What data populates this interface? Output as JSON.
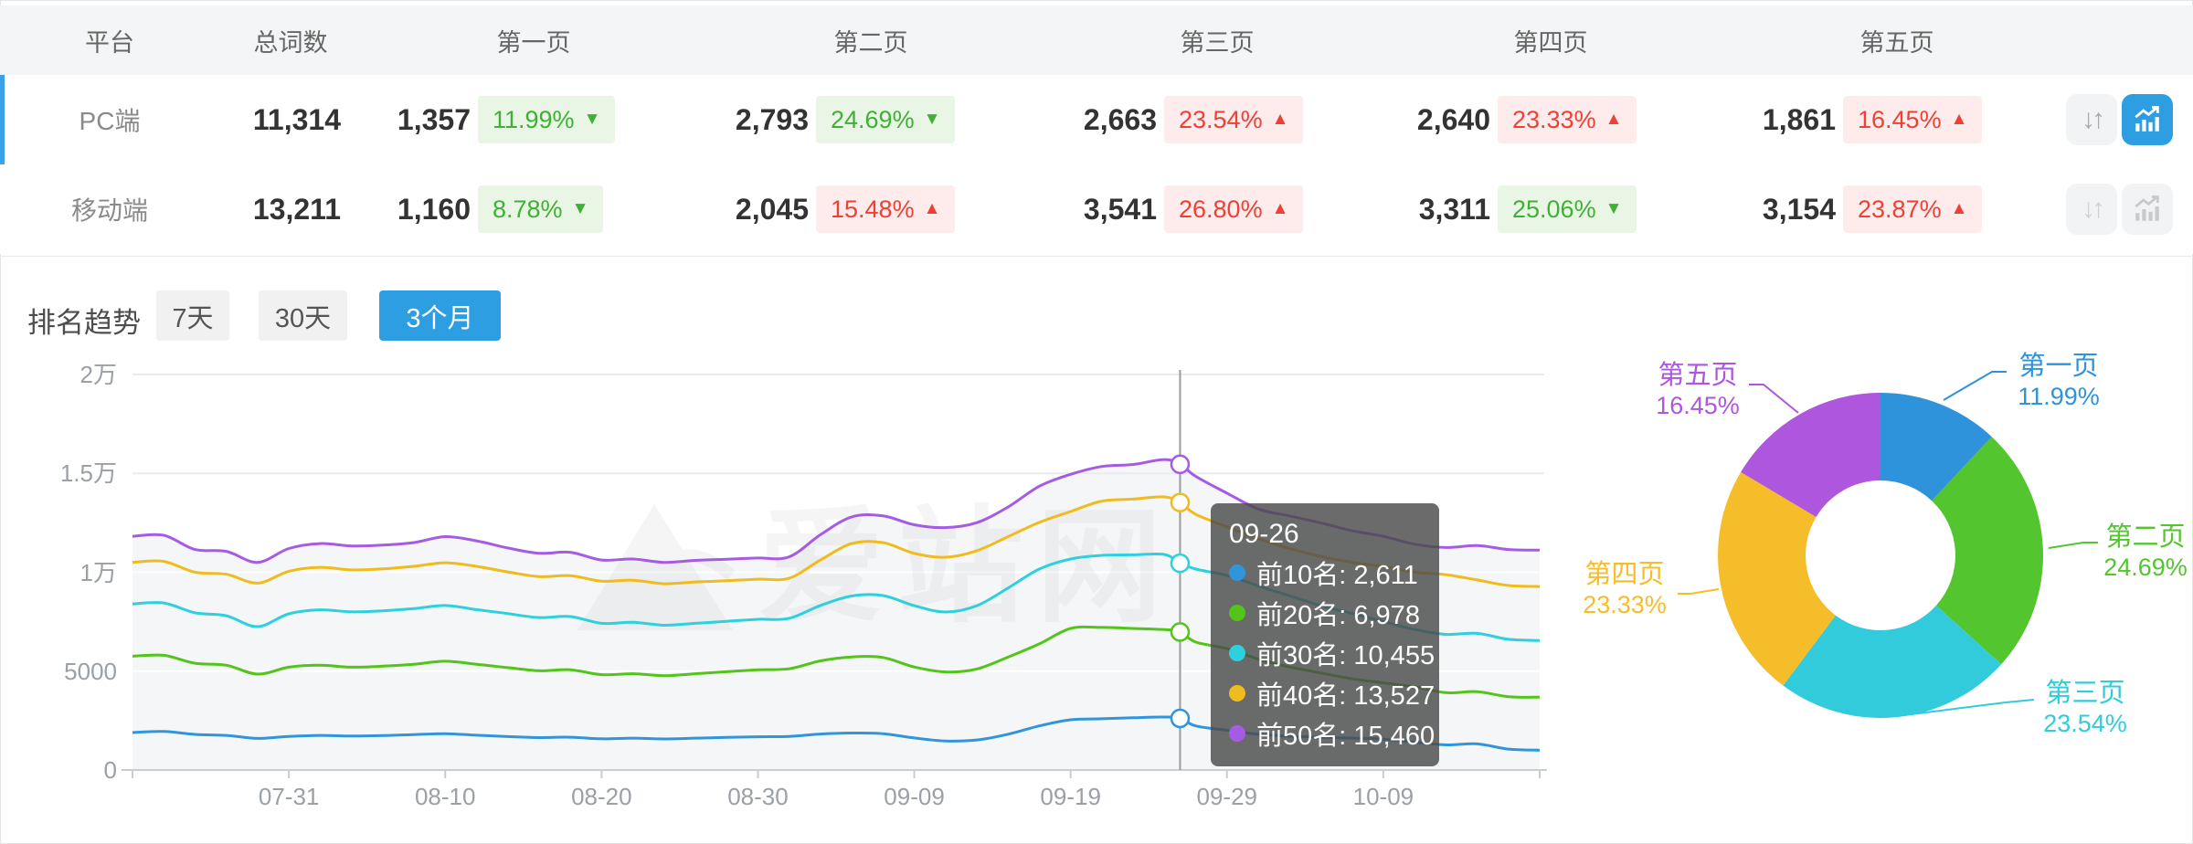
{
  "table": {
    "headers": [
      "平台",
      "总词数",
      "第一页",
      "第二页",
      "第三页",
      "第四页",
      "第五页"
    ],
    "rows": [
      {
        "platform": "PC端",
        "total": "11,314",
        "selected": true,
        "pages": [
          {
            "count": "1,357",
            "pct": "11.99%",
            "dir": "down",
            "tone": "green"
          },
          {
            "count": "2,793",
            "pct": "24.69%",
            "dir": "down",
            "tone": "green"
          },
          {
            "count": "2,663",
            "pct": "23.54%",
            "dir": "up",
            "tone": "red"
          },
          {
            "count": "2,640",
            "pct": "23.33%",
            "dir": "up",
            "tone": "red"
          },
          {
            "count": "1,861",
            "pct": "16.45%",
            "dir": "up",
            "tone": "red"
          }
        ]
      },
      {
        "platform": "移动端",
        "total": "13,211",
        "selected": false,
        "pages": [
          {
            "count": "1,160",
            "pct": "8.78%",
            "dir": "down",
            "tone": "green"
          },
          {
            "count": "2,045",
            "pct": "15.48%",
            "dir": "up",
            "tone": "red"
          },
          {
            "count": "3,541",
            "pct": "26.80%",
            "dir": "up",
            "tone": "red"
          },
          {
            "count": "3,311",
            "pct": "25.06%",
            "dir": "down",
            "tone": "green"
          },
          {
            "count": "3,154",
            "pct": "23.87%",
            "dir": "up",
            "tone": "red"
          }
        ]
      }
    ]
  },
  "trend": {
    "title": "排名趋势",
    "tabs": [
      {
        "label": "7天",
        "active": false
      },
      {
        "label": "30天",
        "active": false
      },
      {
        "label": "3个月",
        "active": true
      }
    ]
  },
  "watermark": "爱站网",
  "colors": {
    "accent_blue": "#2e9ee3",
    "badge_green": "#3eb135",
    "badge_red": "#ee4035"
  },
  "tooltip": {
    "date": "09-26",
    "rows": [
      {
        "label": "前10名",
        "value": "2,611",
        "color": "#3095db"
      },
      {
        "label": "前20名",
        "value": "6,978",
        "color": "#52c41a"
      },
      {
        "label": "前30名",
        "value": "10,455",
        "color": "#2fd0dd"
      },
      {
        "label": "前40名",
        "value": "13,527",
        "color": "#f0bb1d"
      },
      {
        "label": "前50名",
        "value": "15,460",
        "color": "#a55ce4"
      }
    ]
  },
  "chart_data": [
    {
      "type": "line",
      "title": "排名趋势 (3个月)",
      "ylim": [
        0,
        20000
      ],
      "grid": true,
      "hover_date": "09-26",
      "y_ticks": [
        {
          "label": "0",
          "value": 0
        },
        {
          "label": "5000",
          "value": 5000
        },
        {
          "label": "1万",
          "value": 10000
        },
        {
          "label": "1.5万",
          "value": 15000
        },
        {
          "label": "2万",
          "value": 20000
        }
      ],
      "x_ticks": [
        "07-31",
        "08-10",
        "08-20",
        "08-30",
        "09-09",
        "09-19",
        "09-29",
        "10-09"
      ],
      "dates": [
        "07-21",
        "07-23",
        "07-25",
        "07-27",
        "07-29",
        "07-31",
        "08-02",
        "08-04",
        "08-06",
        "08-08",
        "08-10",
        "08-12",
        "08-14",
        "08-16",
        "08-18",
        "08-20",
        "08-22",
        "08-24",
        "08-26",
        "08-28",
        "08-30",
        "09-01",
        "09-03",
        "09-05",
        "09-07",
        "09-09",
        "09-11",
        "09-13",
        "09-15",
        "09-17",
        "09-19",
        "09-21",
        "09-23",
        "09-25",
        "09-26",
        "09-27",
        "09-29",
        "10-01",
        "10-03",
        "10-05",
        "10-07",
        "10-09",
        "10-11",
        "10-13",
        "10-15",
        "10-17",
        "10-19"
      ],
      "series": [
        {
          "name": "前10名",
          "color": "#3095db",
          "values": [
            1900,
            1950,
            1800,
            1750,
            1600,
            1700,
            1750,
            1720,
            1740,
            1790,
            1840,
            1760,
            1690,
            1640,
            1660,
            1580,
            1610,
            1570,
            1610,
            1650,
            1680,
            1700,
            1820,
            1870,
            1840,
            1620,
            1470,
            1520,
            1810,
            2230,
            2540,
            2590,
            2640,
            2680,
            2611,
            2230,
            2010,
            1810,
            1710,
            1660,
            1610,
            1560,
            1410,
            1270,
            1320,
            1060,
            1000
          ]
        },
        {
          "name": "前20名",
          "color": "#52c41a",
          "values": [
            5750,
            5800,
            5400,
            5300,
            4850,
            5200,
            5300,
            5200,
            5250,
            5350,
            5500,
            5350,
            5180,
            5020,
            5070,
            4820,
            4870,
            4770,
            4870,
            4970,
            5070,
            5120,
            5520,
            5720,
            5690,
            5210,
            4960,
            5110,
            5710,
            6380,
            7160,
            7210,
            7160,
            7100,
            6978,
            6470,
            6140,
            5610,
            5210,
            4910,
            4610,
            4410,
            4210,
            3910,
            3960,
            3710,
            3680
          ]
        },
        {
          "name": "前30名",
          "color": "#2fd0dd",
          "values": [
            8400,
            8450,
            7950,
            7800,
            7250,
            7900,
            8100,
            8000,
            8050,
            8160,
            8320,
            8110,
            7910,
            7710,
            7760,
            7420,
            7470,
            7320,
            7420,
            7520,
            7620,
            7670,
            8320,
            8800,
            8820,
            8310,
            7990,
            8310,
            9200,
            10160,
            10670,
            10855,
            10880,
            10900,
            10455,
            10160,
            9840,
            9310,
            8810,
            8310,
            7910,
            7510,
            7110,
            6860,
            6910,
            6610,
            6550
          ]
        },
        {
          "name": "前40名",
          "color": "#f0bb1d",
          "values": [
            10500,
            10550,
            10000,
            9900,
            9450,
            10050,
            10250,
            10120,
            10170,
            10300,
            10480,
            10300,
            10020,
            9780,
            9830,
            9550,
            9600,
            9420,
            9510,
            9570,
            9650,
            9700,
            10620,
            11450,
            11500,
            10950,
            10760,
            11090,
            11800,
            12520,
            13070,
            13600,
            13700,
            13810,
            13527,
            12930,
            12300,
            11700,
            11200,
            10800,
            10500,
            10290,
            10000,
            9880,
            9610,
            9330,
            9280
          ]
        },
        {
          "name": "前50名",
          "color": "#a55ce4",
          "values": [
            11820,
            11870,
            11150,
            11060,
            10500,
            11200,
            11450,
            11330,
            11370,
            11500,
            11800,
            11590,
            11230,
            10960,
            11010,
            10620,
            10670,
            10500,
            10600,
            10660,
            10720,
            10780,
            11900,
            12800,
            12850,
            12400,
            12260,
            12510,
            13300,
            14350,
            14950,
            15350,
            15450,
            15700,
            15460,
            14850,
            14000,
            13200,
            12850,
            12500,
            12100,
            11820,
            11420,
            11250,
            11350,
            11150,
            11120
          ]
        }
      ]
    },
    {
      "type": "donut",
      "categories": [
        "第一页",
        "第二页",
        "第三页",
        "第四页",
        "第五页"
      ],
      "values": [
        11.99,
        24.69,
        23.54,
        23.33,
        16.45
      ],
      "unit": "%",
      "colors": [
        "#2e93da",
        "#53c52e",
        "#32cbdb",
        "#f5bd2a",
        "#ae56dd"
      ],
      "legend_position": "outside-labels"
    }
  ]
}
